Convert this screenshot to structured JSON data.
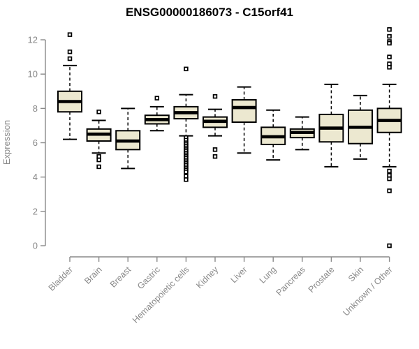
{
  "title": "ENSG00000186073 - C15orf41",
  "colors": {
    "background": "#ffffff",
    "box_fill": "#ece8d0",
    "box_stroke": "#000000",
    "median": "#000000",
    "whisker": "#000000",
    "axis": "#898989",
    "tick_label": "#898989",
    "title": "#000000"
  },
  "chart_data": {
    "type": "boxplot",
    "title": "ENSG00000186073 - C15orf41",
    "xlabel": "",
    "ylabel": "Expression",
    "ylim": [
      -0.3,
      12.9
    ],
    "yticks": [
      0,
      2,
      4,
      6,
      8,
      10,
      12
    ],
    "grid": false,
    "legend": false,
    "categories": [
      "Bladder",
      "Brain",
      "Breast",
      "Gastric",
      "Hematopoietic cells",
      "Kidney",
      "Liver",
      "Lung",
      "Pancreas",
      "Prostate",
      "Skin",
      "Unknown / Other"
    ],
    "boxes": [
      {
        "category": "Bladder",
        "whisker_low": 6.2,
        "q1": 7.8,
        "median": 8.4,
        "q3": 9.0,
        "whisker_high": 10.5,
        "outliers": [
          12.3,
          11.3,
          10.9
        ]
      },
      {
        "category": "Brain",
        "whisker_low": 5.4,
        "q1": 6.1,
        "median": 6.5,
        "q3": 6.8,
        "whisker_high": 7.3,
        "outliers": [
          7.8,
          5.2,
          5.0,
          4.6
        ]
      },
      {
        "category": "Breast",
        "whisker_low": 4.5,
        "q1": 5.6,
        "median": 6.1,
        "q3": 6.7,
        "whisker_high": 8.0,
        "outliers": []
      },
      {
        "category": "Gastric",
        "whisker_low": 6.7,
        "q1": 7.1,
        "median": 7.35,
        "q3": 7.6,
        "whisker_high": 8.1,
        "outliers": [
          8.6
        ]
      },
      {
        "category": "Hematopoietic cells",
        "whisker_low": 6.4,
        "q1": 7.4,
        "median": 7.75,
        "q3": 8.1,
        "whisker_high": 8.8,
        "outliers": [
          10.3,
          6.3,
          6.15,
          6.0,
          5.9,
          5.8,
          5.7,
          5.6,
          5.5,
          5.4,
          5.3,
          5.2,
          5.1,
          5.0,
          4.9,
          4.8,
          4.7,
          4.6,
          4.5,
          4.4,
          4.3,
          4.05,
          3.85
        ]
      },
      {
        "category": "Kidney",
        "whisker_low": 6.4,
        "q1": 6.9,
        "median": 7.25,
        "q3": 7.5,
        "whisker_high": 7.95,
        "outliers": [
          8.7,
          5.6,
          5.2
        ]
      },
      {
        "category": "Liver",
        "whisker_low": 5.4,
        "q1": 7.2,
        "median": 8.05,
        "q3": 8.5,
        "whisker_high": 9.25,
        "outliers": []
      },
      {
        "category": "Lung",
        "whisker_low": 5.0,
        "q1": 5.9,
        "median": 6.35,
        "q3": 6.9,
        "whisker_high": 7.9,
        "outliers": []
      },
      {
        "category": "Pancreas",
        "whisker_low": 5.6,
        "q1": 6.3,
        "median": 6.6,
        "q3": 6.8,
        "whisker_high": 7.5,
        "outliers": []
      },
      {
        "category": "Prostate",
        "whisker_low": 4.6,
        "q1": 6.05,
        "median": 6.85,
        "q3": 7.65,
        "whisker_high": 9.4,
        "outliers": []
      },
      {
        "category": "Skin",
        "whisker_low": 5.05,
        "q1": 5.95,
        "median": 6.9,
        "q3": 7.9,
        "whisker_high": 8.75,
        "outliers": []
      },
      {
        "category": "Unknown / Other",
        "whisker_low": 4.6,
        "q1": 6.6,
        "median": 7.3,
        "q3": 8.0,
        "whisker_high": 9.4,
        "outliers": [
          12.6,
          12.2,
          11.9,
          11.8,
          11.0,
          10.6,
          10.4,
          4.35,
          4.1,
          3.9,
          3.2,
          0.0
        ]
      }
    ]
  }
}
